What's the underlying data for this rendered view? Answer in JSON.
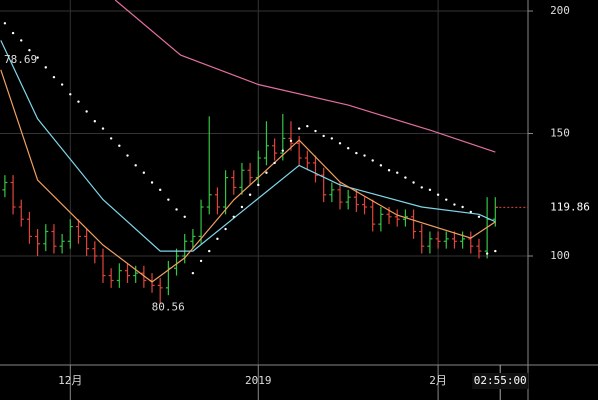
{
  "chart_data": {
    "type": "ohlc",
    "up_color": "#35c544",
    "down_color": "#e0443a",
    "open": [
      127,
      130,
      120,
      115,
      108,
      105,
      110,
      104,
      106,
      112,
      108,
      103,
      100,
      92,
      90,
      94,
      92,
      93,
      90,
      88,
      87,
      95,
      100,
      106,
      108,
      120,
      125,
      120,
      132,
      128,
      135,
      132,
      140,
      145,
      142,
      148,
      146,
      140,
      138,
      133,
      125,
      127,
      122,
      124,
      121,
      120,
      113,
      117,
      116,
      115,
      116,
      110,
      104,
      107,
      106,
      107,
      106,
      107,
      104,
      102,
      115
    ],
    "high": [
      133,
      133,
      123,
      118,
      111,
      113,
      113,
      109,
      115,
      115,
      111,
      106,
      103,
      95,
      97,
      97,
      96,
      96,
      93,
      91,
      98,
      103,
      109,
      111,
      123,
      157,
      128,
      135,
      135,
      138,
      138,
      143,
      155,
      148,
      158,
      155,
      149,
      143,
      141,
      136,
      130,
      130,
      127,
      127,
      124,
      123,
      120,
      120,
      119,
      119,
      119,
      113,
      110,
      110,
      110,
      110,
      110,
      110,
      107,
      124,
      124
    ],
    "low": [
      124,
      117,
      112,
      105,
      100,
      102,
      101,
      101,
      103,
      105,
      100,
      97,
      89,
      87,
      87,
      89,
      89,
      87,
      85,
      80.56,
      84,
      92,
      97,
      103,
      105,
      117,
      117,
      117,
      125,
      125,
      129,
      129,
      137,
      139,
      139,
      143,
      137,
      135,
      130,
      122,
      122,
      119,
      119,
      118,
      117,
      110,
      110,
      113,
      112,
      112,
      107,
      101,
      101,
      103,
      103,
      103,
      103,
      101,
      99,
      99,
      112
    ],
    "close": [
      130,
      120,
      115,
      108,
      105,
      110,
      104,
      106,
      112,
      108,
      103,
      100,
      92,
      90,
      94,
      92,
      93,
      90,
      88,
      87,
      95,
      100,
      106,
      108,
      120,
      125,
      120,
      132,
      128,
      135,
      132,
      140,
      145,
      142,
      148,
      146,
      140,
      138,
      133,
      125,
      127,
      122,
      124,
      121,
      120,
      113,
      117,
      116,
      115,
      116,
      110,
      104,
      107,
      106,
      107,
      106,
      107,
      104,
      102,
      115,
      119.86
    ],
    "lines": [
      {
        "color": "#e06fa0",
        "x": [
          13.5,
          21.5,
          31,
          42,
          52,
          60
        ],
        "values": [
          204.5,
          182,
          170,
          161.6,
          151.4,
          142.4
        ]
      },
      {
        "color": "#7fd6e8",
        "x": [
          -0.5,
          4,
          12,
          19,
          23,
          36,
          41,
          51,
          58,
          60
        ],
        "values": [
          188,
          156,
          123,
          102,
          102,
          137,
          129,
          120,
          117,
          114
        ]
      },
      {
        "color": "#f0a060",
        "x": [
          -0.5,
          4,
          12,
          18,
          22,
          28,
          36,
          41,
          48,
          57,
          60
        ],
        "values": [
          176,
          131,
          104.5,
          89.4,
          99.2,
          122.9,
          147.3,
          130.2,
          116.7,
          107.3,
          113.9
        ]
      }
    ],
    "sar": [
      195,
      191,
      188,
      184,
      181,
      177,
      173,
      170,
      166,
      163,
      159,
      155,
      152,
      148,
      145,
      141,
      137,
      134,
      130,
      127,
      123,
      119,
      116,
      93,
      98,
      102,
      107,
      111,
      116,
      120,
      125,
      129,
      134,
      138,
      143,
      147,
      152,
      153,
      151,
      149,
      148,
      146,
      144,
      142,
      141,
      139,
      137,
      135,
      134,
      132,
      130,
      128,
      127,
      125,
      123,
      121,
      120,
      118,
      116,
      101,
      102
    ],
    "sar_color": "#ffffff",
    "annotations": [
      78.69
    ],
    "xlim": [
      -0.6,
      64
    ],
    "ylim": [
      55.5,
      204.5
    ],
    "yticks": [
      100,
      150,
      200
    ],
    "xticks": [
      {
        "value": 8,
        "label": "12月"
      },
      {
        "value": 31,
        "label": "2019"
      },
      {
        "value": 53,
        "label": "2月"
      }
    ],
    "cursor": {
      "value": 60.6,
      "label": "02:55:00"
    },
    "grid": true
  }
}
